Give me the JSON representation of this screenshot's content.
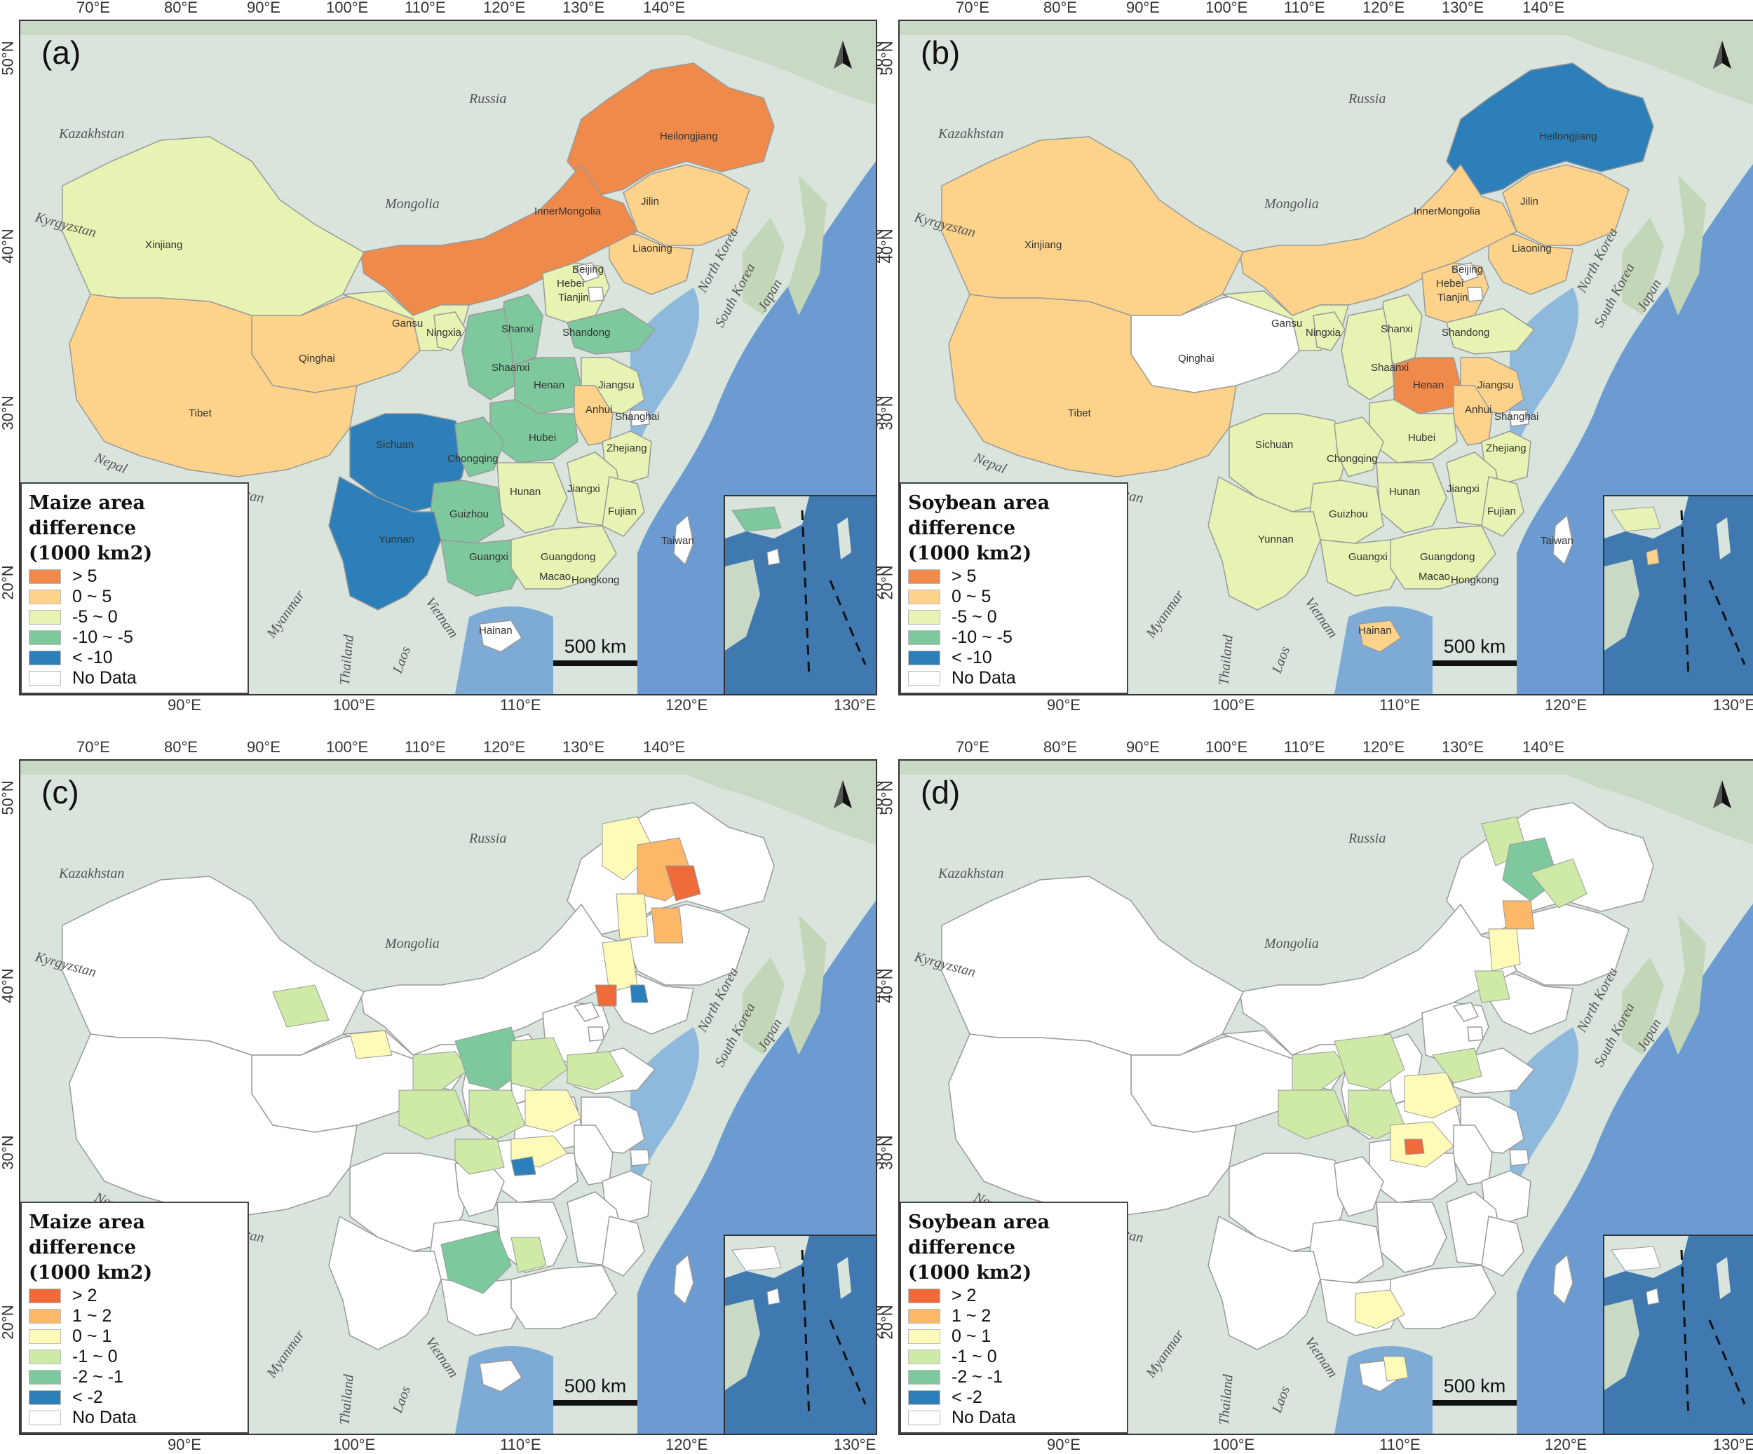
{
  "panels": [
    {
      "id": "a",
      "label": "(a)",
      "legend_title_1": "Maize area difference",
      "legend_title_2": "(1000 km2)",
      "legend": [
        {
          "label": "> 5",
          "color": "#f08a4b"
        },
        {
          "label": "0 ~ 5",
          "color": "#fdd28a"
        },
        {
          "label": "-5 ~ 0",
          "color": "#e6f3b3"
        },
        {
          "label": "-10 ~ -5",
          "color": "#7ec89e"
        },
        {
          "label": "< -10",
          "color": "#2c7fb8"
        },
        {
          "label": "No Data",
          "color": "#ffffff"
        }
      ],
      "provinces": [
        "Heilongjiang",
        "Jilin",
        "InnerMongolia",
        "Liaoning",
        "Xinjiang",
        "Beijing",
        "Hebei",
        "Tianjin",
        "Gansu",
        "Ningxia",
        "Shanxi",
        "Shandong",
        "Qinghai",
        "Shaanxi",
        "Henan",
        "Jiangsu",
        "Anhui",
        "Tibet",
        "Shanghai",
        "Sichuan",
        "Hubei",
        "Chongqing",
        "Zhejiang",
        "Hunan",
        "Jiangxi",
        "Guizhou",
        "Fujian",
        "Yunnan",
        "Guangxi",
        "Taiwan",
        "Guangdong",
        "Macao",
        "Hongkong",
        "Hainan"
      ],
      "scale": "500 km"
    },
    {
      "id": "b",
      "label": "(b)",
      "legend_title_1": "Soybean area difference",
      "legend_title_2": "(1000 km2)",
      "legend": [
        {
          "label": "> 5",
          "color": "#f08a4b"
        },
        {
          "label": "0 ~ 5",
          "color": "#fdd28a"
        },
        {
          "label": "-5 ~ 0",
          "color": "#e6f3b3"
        },
        {
          "label": "-10 ~ -5",
          "color": "#7ec89e"
        },
        {
          "label": "< -10",
          "color": "#2c7fb8"
        },
        {
          "label": "No Data",
          "color": "#ffffff"
        }
      ],
      "provinces": [
        "Heilongjiang",
        "Jilin",
        "InnerMongolia",
        "Liaoning",
        "Xinjiang",
        "Beijing",
        "Hebei",
        "Tianjin",
        "Gansu",
        "Ningxia",
        "Shanxi",
        "Shandong",
        "Qinghai",
        "Shaanxi",
        "Henan",
        "Jiangsu",
        "Anhui",
        "Tibet",
        "Shanghai",
        "Sichuan",
        "Hubei",
        "Chongqing",
        "Zhejiang",
        "Hunan",
        "Jiangxi",
        "Guizhou",
        "Fujian",
        "Yunnan",
        "Guangxi",
        "Taiwan",
        "Guangdong",
        "Macao",
        "Hongkong",
        "Hainan"
      ],
      "scale": "500 km"
    },
    {
      "id": "c",
      "label": "(c)",
      "legend_title_1": "Maize area difference",
      "legend_title_2": "(1000 km2)",
      "legend": [
        {
          "label": "> 2",
          "color": "#f06b3a"
        },
        {
          "label": "1 ~ 2",
          "color": "#fbb868"
        },
        {
          "label": "0 ~ 1",
          "color": "#fefbb8"
        },
        {
          "label": "-1 ~ 0",
          "color": "#cfe9a6"
        },
        {
          "label": "-2 ~ -1",
          "color": "#7ec89e"
        },
        {
          "label": "< -2",
          "color": "#2c7fb8"
        },
        {
          "label": "No Data",
          "color": "#ffffff"
        }
      ],
      "provinces": [],
      "scale": "500 km"
    },
    {
      "id": "d",
      "label": "(d)",
      "legend_title_1": "Soybean area difference",
      "legend_title_2": "(1000 km2)",
      "legend": [
        {
          "label": "> 2",
          "color": "#f06b3a"
        },
        {
          "label": "1 ~ 2",
          "color": "#fbb868"
        },
        {
          "label": "0 ~ 1",
          "color": "#fefbb8"
        },
        {
          "label": "-1 ~ 0",
          "color": "#cfe9a6"
        },
        {
          "label": "-2 ~ -1",
          "color": "#7ec89e"
        },
        {
          "label": "< -2",
          "color": "#2c7fb8"
        },
        {
          "label": "No Data",
          "color": "#ffffff"
        }
      ],
      "provinces": [],
      "scale": "500 km"
    }
  ],
  "countries": [
    "Russia",
    "Kazakhstan",
    "Mongolia",
    "Kyrgyzstan",
    "North Korea",
    "South Korea",
    "Japan",
    "Nepal",
    "Bhutan",
    "Myanmar",
    "Thailand",
    "Laos",
    "Vietnam"
  ],
  "top_ticks": [
    "70°E",
    "80°E",
    "90°E",
    "100°E",
    "110°E",
    "120°E",
    "130°E",
    "140°E"
  ],
  "bottom_ticks": [
    "90°E",
    "100°E",
    "110°E",
    "120°E",
    "130°E"
  ],
  "lat_ticks": [
    "50°N",
    "40°N",
    "30°N",
    "20°N"
  ]
}
